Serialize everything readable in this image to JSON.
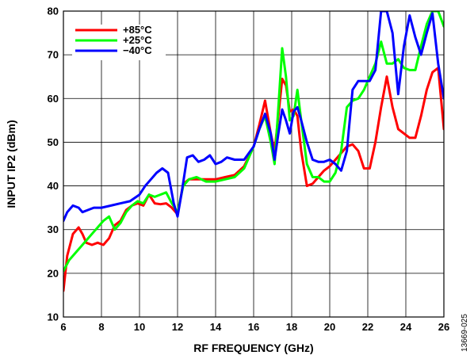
{
  "chart_data": {
    "type": "line",
    "xlabel": "RF FREQUENCY (GHz)",
    "ylabel": "INPUT IP2 (dBm)",
    "xlim": [
      6,
      26
    ],
    "ylim": [
      10,
      80
    ],
    "xticks": [
      6,
      8,
      10,
      12,
      14,
      16,
      18,
      20,
      22,
      24,
      26
    ],
    "yticks": [
      10,
      20,
      30,
      40,
      50,
      60,
      70,
      80
    ],
    "grid": true,
    "legend_position": "top-left",
    "figure_id": "13669-025",
    "series": [
      {
        "name": "+85°C",
        "color": "#ff0000",
        "x": [
          6.0,
          6.2,
          6.5,
          6.8,
          7.0,
          7.2,
          7.5,
          7.8,
          8.1,
          8.4,
          8.7,
          9.0,
          9.3,
          9.6,
          9.9,
          10.2,
          10.5,
          10.8,
          11.1,
          11.4,
          11.7,
          12.0,
          12.3,
          12.6,
          13.0,
          13.5,
          14.0,
          14.5,
          15.0,
          15.5,
          16.0,
          16.3,
          16.6,
          16.9,
          17.1,
          17.3,
          17.5,
          17.7,
          17.9,
          18.1,
          18.3,
          18.5,
          18.8,
          19.1,
          19.4,
          19.7,
          20.0,
          20.3,
          20.6,
          20.9,
          21.2,
          21.5,
          21.8,
          22.1,
          22.4,
          22.7,
          23.0,
          23.3,
          23.6,
          23.9,
          24.2,
          24.5,
          24.8,
          25.1,
          25.4,
          25.7,
          26.0
        ],
        "y": [
          16,
          24,
          29,
          30.5,
          29,
          27,
          26.5,
          27,
          26.5,
          28,
          31,
          32,
          34.5,
          35.5,
          36,
          35.5,
          38,
          36,
          35.8,
          36,
          35,
          33.5,
          40.5,
          41.5,
          41.5,
          41.5,
          41.5,
          42,
          42.5,
          44.5,
          49,
          54,
          59.5,
          52,
          48,
          56,
          64.5,
          63,
          57,
          57.5,
          56,
          48,
          40,
          40.5,
          42,
          43.5,
          44.5,
          46,
          47.5,
          49,
          49.5,
          48,
          44,
          44,
          50,
          58,
          65,
          58,
          53,
          52,
          51,
          51,
          56,
          62,
          66,
          67,
          53
        ]
      },
      {
        "name": "+25°C",
        "color": "#00ff00",
        "x": [
          6.0,
          6.3,
          6.6,
          6.9,
          7.2,
          7.5,
          7.8,
          8.1,
          8.4,
          8.7,
          9.0,
          9.3,
          9.6,
          9.9,
          10.2,
          10.5,
          10.8,
          11.1,
          11.4,
          11.7,
          12.0,
          12.3,
          12.6,
          13.0,
          13.5,
          14.0,
          14.5,
          15.0,
          15.5,
          16.0,
          16.3,
          16.6,
          16.9,
          17.1,
          17.3,
          17.5,
          17.7,
          17.9,
          18.1,
          18.3,
          18.5,
          18.8,
          19.1,
          19.4,
          19.7,
          20.0,
          20.3,
          20.6,
          20.9,
          21.2,
          21.5,
          21.8,
          22.1,
          22.4,
          22.7,
          23.0,
          23.3,
          23.6,
          23.9,
          24.2,
          24.5,
          24.8,
          25.1,
          25.4,
          25.7,
          26.0
        ],
        "y": [
          20.5,
          23,
          24.5,
          26,
          27.5,
          29,
          30.5,
          32,
          33,
          30,
          31.5,
          34,
          35.5,
          36.5,
          36,
          38,
          37.5,
          38,
          38.5,
          36,
          34,
          40,
          41.5,
          42,
          41,
          41,
          41.5,
          42,
          44,
          49,
          53,
          56,
          50,
          45,
          58,
          71.5,
          65,
          55,
          56,
          62,
          55,
          45,
          42,
          42,
          41,
          41,
          43,
          48,
          58,
          59.5,
          60,
          62,
          65,
          68,
          73,
          68,
          68,
          69,
          67,
          66.5,
          66.5,
          72,
          77,
          80,
          80,
          76.5
        ]
      },
      {
        "name": "−40°C",
        "color": "#0000ff",
        "x": [
          6.0,
          6.2,
          6.5,
          6.8,
          7.0,
          7.3,
          7.6,
          8.0,
          8.5,
          9.0,
          9.5,
          10.0,
          10.3,
          10.6,
          10.9,
          11.2,
          11.5,
          11.8,
          12.0,
          12.2,
          12.5,
          12.8,
          13.1,
          13.4,
          13.7,
          14.0,
          14.3,
          14.6,
          15.0,
          15.5,
          16.0,
          16.3,
          16.6,
          16.9,
          17.1,
          17.3,
          17.5,
          17.7,
          17.9,
          18.1,
          18.3,
          18.5,
          18.8,
          19.1,
          19.4,
          19.7,
          20.0,
          20.3,
          20.6,
          20.9,
          21.2,
          21.5,
          21.8,
          22.1,
          22.4,
          22.7,
          23.0,
          23.3,
          23.6,
          23.9,
          24.2,
          24.5,
          24.8,
          25.1,
          25.4,
          25.7,
          26.0
        ],
        "y": [
          32,
          34,
          35.5,
          35,
          34,
          34.5,
          35,
          35,
          35.5,
          36,
          36.5,
          38,
          40,
          41.5,
          43,
          44,
          43,
          36,
          33,
          38,
          46.5,
          47,
          45.5,
          46,
          47,
          45,
          45.5,
          46.5,
          46,
          46,
          49,
          53,
          56.5,
          52,
          46,
          52,
          57.5,
          55,
          52,
          57,
          58,
          55,
          50,
          46,
          45.5,
          45.5,
          46,
          45,
          43.5,
          48,
          62,
          64,
          64,
          64,
          66.5,
          80,
          80,
          75,
          61,
          72,
          79,
          74,
          70,
          75,
          79.5,
          68,
          60
        ]
      }
    ]
  }
}
